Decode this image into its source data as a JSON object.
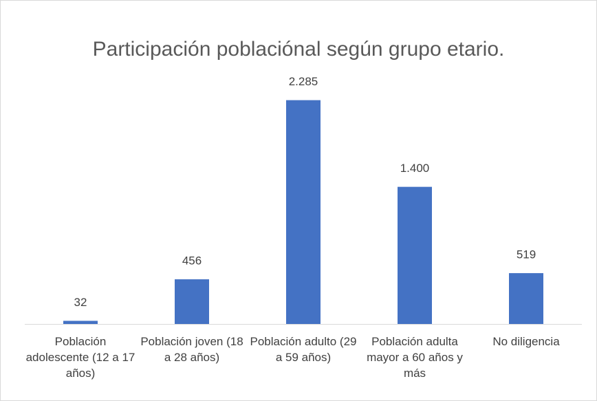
{
  "chart_data": {
    "type": "bar",
    "title": "Participación poblaciónal según grupo etario.",
    "categories": [
      "Población adolescente (12 a 17 años)",
      "Población joven (18 a 28 años)",
      "Población adulto (29 a 59 años)",
      "Población adulta mayor a 60 años y más",
      "No diligencia"
    ],
    "values": [
      32,
      456,
      2285,
      1400,
      519
    ],
    "value_labels": [
      "32",
      "456",
      "2.285",
      "1.400",
      "519"
    ],
    "color": "#4472c4",
    "ylim": [
      0,
      2500
    ]
  }
}
